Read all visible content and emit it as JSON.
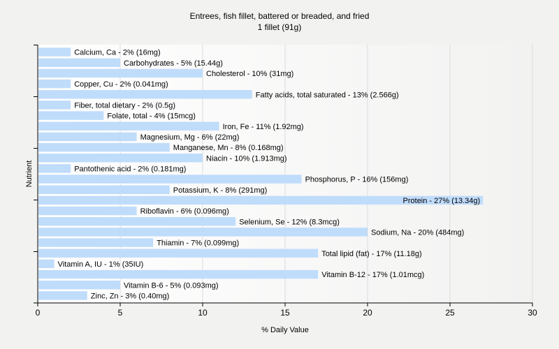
{
  "chart_data": {
    "type": "bar",
    "orientation": "horizontal",
    "title": "Entrees, fish fillet, battered or breaded, and fried",
    "subtitle": "1 fillet (91g)",
    "xlabel": "% Daily Value",
    "ylabel": "Nutrient",
    "xlim": [
      0,
      30
    ],
    "xticks": [
      0,
      5,
      10,
      15,
      20,
      25,
      30
    ],
    "grid": true,
    "bar_color": "#c0dcfb",
    "categories": [
      "Calcium, Ca",
      "Carbohydrates",
      "Cholesterol",
      "Copper, Cu",
      "Fatty acids, total saturated",
      "Fiber, total dietary",
      "Folate, total",
      "Iron, Fe",
      "Magnesium, Mg",
      "Manganese, Mn",
      "Niacin",
      "Pantothenic acid",
      "Phosphorus, P",
      "Potassium, K",
      "Protein",
      "Riboflavin",
      "Selenium, Se",
      "Sodium, Na",
      "Thiamin",
      "Total lipid (fat)",
      "Vitamin A, IU",
      "Vitamin B-12",
      "Vitamin B-6",
      "Zinc, Zn"
    ],
    "values": [
      2,
      5,
      10,
      2,
      13,
      2,
      4,
      11,
      6,
      8,
      10,
      2,
      16,
      8,
      27,
      6,
      12,
      20,
      7,
      17,
      1,
      17,
      5,
      3
    ],
    "amounts": [
      "16mg",
      "15.44g",
      "31mg",
      "0.041mg",
      "2.566g",
      "0.5g",
      "15mcg",
      "1.92mg",
      "22mg",
      "0.168mg",
      "1.913mg",
      "0.181mg",
      "156mg",
      "291mg",
      "13.34g",
      "0.096mg",
      "8.3mcg",
      "484mg",
      "0.099mg",
      "11.18g",
      "35IU",
      "1.01mcg",
      "0.093mg",
      "0.40mg"
    ],
    "labels": [
      "Calcium, Ca - 2% (16mg)",
      "Carbohydrates - 5% (15.44g)",
      "Cholesterol - 10% (31mg)",
      "Copper, Cu - 2% (0.041mg)",
      "Fatty acids, total saturated - 13% (2.566g)",
      "Fiber, total dietary - 2% (0.5g)",
      "Folate, total - 4% (15mcg)",
      "Iron, Fe - 11% (1.92mg)",
      "Magnesium, Mg - 6% (22mg)",
      "Manganese, Mn - 8% (0.168mg)",
      "Niacin - 10% (1.913mg)",
      "Pantothenic acid - 2% (0.181mg)",
      "Phosphorus, P - 16% (156mg)",
      "Potassium, K - 8% (291mg)",
      "Protein - 27% (13.34g)",
      "Riboflavin - 6% (0.096mg)",
      "Selenium, Se - 12% (8.3mcg)",
      "Sodium, Na - 20% (484mg)",
      "Thiamin - 7% (0.099mg)",
      "Total lipid (fat) - 17% (11.18g)",
      "Vitamin A, IU - 1% (35IU)",
      "Vitamin B-12 - 17% (1.01mcg)",
      "Vitamin B-6 - 5% (0.093mg)",
      "Zinc, Zn - 3% (0.40mg)"
    ]
  }
}
